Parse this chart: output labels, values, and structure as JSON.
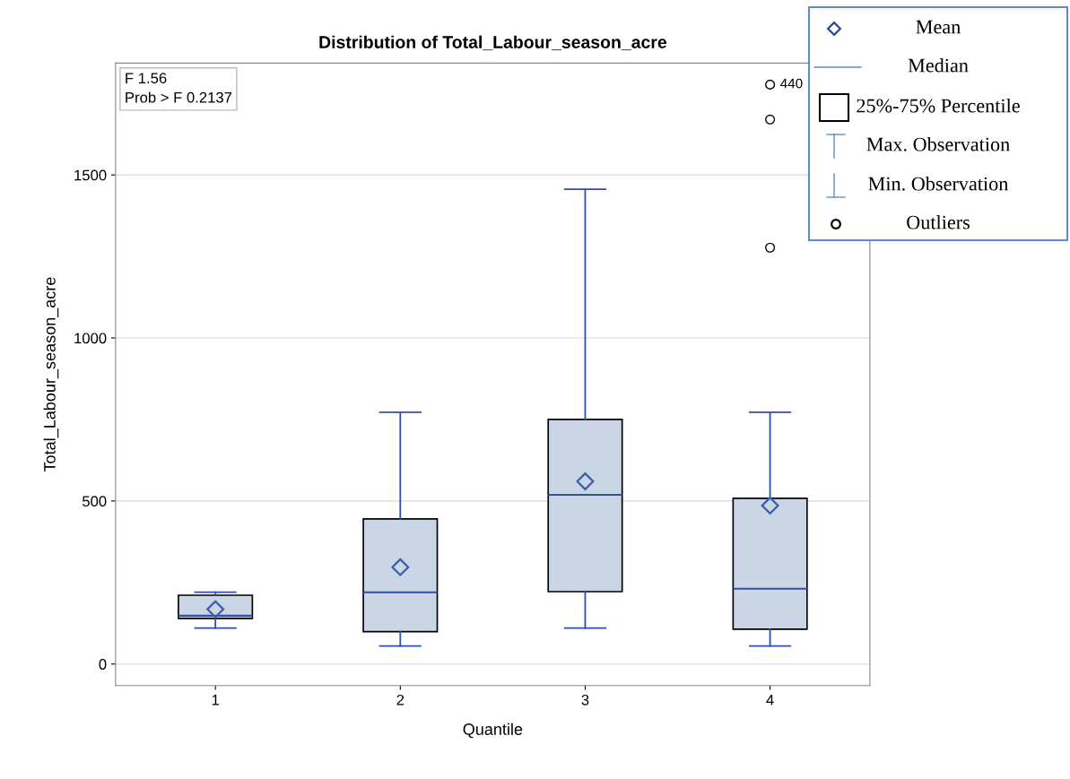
{
  "chart_data": {
    "type": "box",
    "title": "Distribution of Total_Labour_season_acre",
    "xlabel": "Quantile",
    "ylabel": "Total_Labour_season_acre",
    "categories": [
      "1",
      "2",
      "3",
      "4"
    ],
    "boxes": [
      {
        "low": 110,
        "q1": 140,
        "median": 148,
        "q3": 211,
        "high": 220,
        "mean": 168
      },
      {
        "low": 55,
        "q1": 99,
        "median": 220,
        "q3": 445,
        "high": 772,
        "mean": 297
      },
      {
        "low": 110,
        "q1": 222,
        "median": 519,
        "q3": 750,
        "high": 1456,
        "mean": 560
      },
      {
        "low": 55,
        "q1": 107,
        "median": 231,
        "q3": 508,
        "high": 772,
        "mean": 486,
        "outliers": [
          1777,
          1670,
          1277
        ]
      }
    ],
    "color": "#cad5e5",
    "ylim": [
      -66,
      1843
    ],
    "yticks": [
      0,
      500,
      1000,
      1500
    ],
    "grid": "y",
    "annotations": [
      "F 1.56",
      "Prob > F 0.2137",
      "Mean",
      "Median",
      "25%-75% Percentile",
      "Max. Observation",
      "Min. Observation",
      "Outliers",
      "440"
    ]
  }
}
